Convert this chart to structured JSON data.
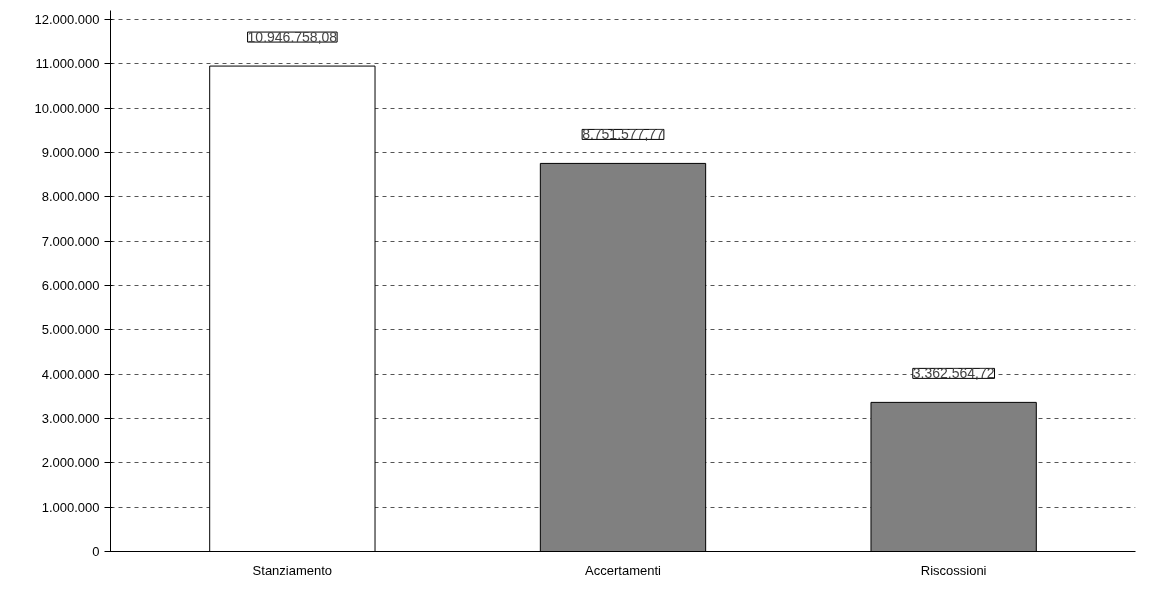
{
  "chart_data": {
    "type": "bar",
    "categories": [
      "Stanziamento",
      "Accertamenti",
      "Riscossioni"
    ],
    "values": [
      10946758.08,
      8751577.77,
      3362564.72
    ],
    "colors": [
      "#ffffff",
      "#808080",
      "#808080"
    ],
    "value_labels": [
      "10.946.758,08",
      "8.751.577,77",
      "3.362.564,72"
    ],
    "ylim": [
      0,
      12200000
    ],
    "yticks": [
      {
        "value": 0,
        "label": "0"
      },
      {
        "value": 1000000,
        "label": "1.000.000"
      },
      {
        "value": 2000000,
        "label": "2.000.000"
      },
      {
        "value": 3000000,
        "label": "3.000.000"
      },
      {
        "value": 4000000,
        "label": "4.000.000"
      },
      {
        "value": 5000000,
        "label": "5.000.000"
      },
      {
        "value": 6000000,
        "label": "6.000.000"
      },
      {
        "value": 7000000,
        "label": "7.000.000"
      },
      {
        "value": 8000000,
        "label": "8.000.000"
      },
      {
        "value": 9000000,
        "label": "9.000.000"
      },
      {
        "value": 10000000,
        "label": "10.000.000"
      },
      {
        "value": 11000000,
        "label": "11.000.000"
      },
      {
        "value": 12000000,
        "label": "12.000.000"
      }
    ],
    "grid": "y"
  }
}
